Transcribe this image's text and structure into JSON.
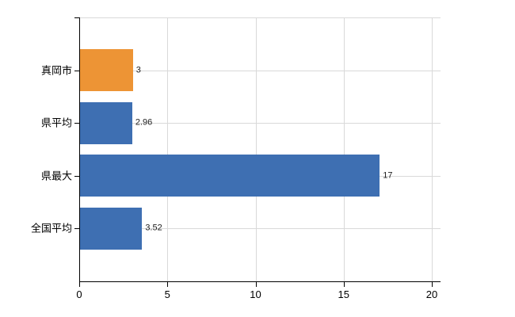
{
  "chart_data": {
    "type": "bar",
    "orientation": "horizontal",
    "title": "",
    "xlabel": "",
    "ylabel": "",
    "categories": [
      "真岡市",
      "県平均",
      "県最大",
      "全国平均"
    ],
    "values": [
      3,
      2.96,
      17,
      3.52
    ],
    "value_labels": [
      "3",
      "2.96",
      "17",
      "3.52"
    ],
    "bar_colors": [
      "#ED9435",
      "#3E6FB2",
      "#3E6FB2",
      "#3E6FB2"
    ],
    "xlim": [
      0,
      20
    ],
    "x_ticks": [
      0,
      5,
      10,
      15,
      20
    ],
    "x_tick_labels": [
      "0",
      "5",
      "10",
      "15",
      "20"
    ],
    "grid": true,
    "legend": false,
    "colors": {
      "background": "#FFFFFF",
      "grid": "#D9D9D9",
      "axis": "#000000",
      "category_text": "#000000",
      "value_text": "#222222",
      "tick_text": "#000000"
    }
  }
}
